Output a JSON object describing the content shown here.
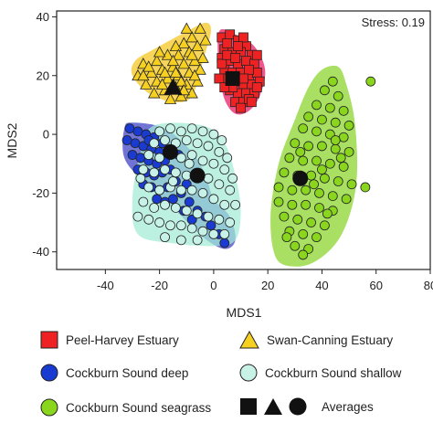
{
  "chart_data": {
    "type": "scatter",
    "xlabel": "MDS1",
    "ylabel": "MDS2",
    "xlim": [
      -58,
      80
    ],
    "ylim": [
      -46,
      42
    ],
    "xticks": [
      -40,
      -20,
      0,
      20,
      40,
      60,
      80
    ],
    "yticks": [
      -40,
      -20,
      0,
      20,
      40
    ],
    "xtick_labels": [
      "-40",
      "-20",
      "0",
      "20",
      "40",
      "60",
      "80"
    ],
    "ytick_labels": [
      "-40",
      "-20",
      "0",
      "20",
      "40"
    ],
    "grid": false,
    "annotation": "Stress: 0.19",
    "series": [
      {
        "name": "Peel-Harvey Estuary",
        "marker": "square",
        "color": "#ee2222",
        "hull_color": "#e8155f",
        "average": [
          7,
          19
        ],
        "hull": [
          [
            2,
            35
          ],
          [
            8,
            34
          ],
          [
            15,
            30
          ],
          [
            19,
            22
          ],
          [
            17,
            13
          ],
          [
            13,
            8
          ],
          [
            8,
            7
          ],
          [
            4,
            12
          ],
          [
            2,
            22
          ]
        ],
        "points": [
          [
            3,
            33
          ],
          [
            6,
            34
          ],
          [
            9,
            32
          ],
          [
            12,
            30
          ],
          [
            4,
            29
          ],
          [
            7,
            28
          ],
          [
            10,
            28
          ],
          [
            14,
            27
          ],
          [
            3,
            26
          ],
          [
            6,
            25
          ],
          [
            9,
            24
          ],
          [
            12,
            25
          ],
          [
            15,
            24
          ],
          [
            4,
            22
          ],
          [
            7,
            21
          ],
          [
            10,
            21
          ],
          [
            13,
            20
          ],
          [
            16,
            21
          ],
          [
            5,
            19
          ],
          [
            8,
            18
          ],
          [
            11,
            17
          ],
          [
            14,
            17
          ],
          [
            17,
            18
          ],
          [
            6,
            15
          ],
          [
            9,
            14
          ],
          [
            12,
            14
          ],
          [
            15,
            14
          ],
          [
            8,
            11
          ],
          [
            11,
            11
          ],
          [
            10,
            9
          ],
          [
            13,
            12
          ],
          [
            3,
            24
          ],
          [
            5,
            31
          ],
          [
            11,
            33
          ],
          [
            16,
            27
          ],
          [
            2,
            19
          ],
          [
            7,
            16
          ],
          [
            13,
            22
          ],
          [
            9,
            30
          ],
          [
            5,
            27
          ],
          [
            16,
            16
          ],
          [
            11,
            19
          ],
          [
            8,
            26
          ],
          [
            14,
            11
          ],
          [
            4,
            16
          ]
        ]
      },
      {
        "name": "Swan-Canning Estuary",
        "marker": "triangle",
        "color": "#f5d020",
        "hull_color": "#f2c51a",
        "average": [
          -15,
          16
        ],
        "hull": [
          [
            -3,
            38
          ],
          [
            -1,
            35
          ],
          [
            -4,
            25
          ],
          [
            -8,
            13
          ],
          [
            -15,
            11
          ],
          [
            -24,
            14
          ],
          [
            -30,
            20
          ],
          [
            -29,
            25
          ],
          [
            -22,
            29
          ],
          [
            -10,
            35
          ]
        ],
        "points": [
          [
            -5,
            36
          ],
          [
            -8,
            33
          ],
          [
            -11,
            31
          ],
          [
            -14,
            30
          ],
          [
            -6,
            30
          ],
          [
            -9,
            28
          ],
          [
            -13,
            27
          ],
          [
            -17,
            27
          ],
          [
            -21,
            25
          ],
          [
            -26,
            24
          ],
          [
            -4,
            26
          ],
          [
            -7,
            25
          ],
          [
            -11,
            24
          ],
          [
            -15,
            23
          ],
          [
            -19,
            22
          ],
          [
            -23,
            21
          ],
          [
            -28,
            20
          ],
          [
            -5,
            22
          ],
          [
            -9,
            21
          ],
          [
            -13,
            20
          ],
          [
            -17,
            19
          ],
          [
            -21,
            18
          ],
          [
            -25,
            17
          ],
          [
            -6,
            18
          ],
          [
            -10,
            17
          ],
          [
            -14,
            16
          ],
          [
            -18,
            15
          ],
          [
            -22,
            14
          ],
          [
            -8,
            14
          ],
          [
            -12,
            13
          ],
          [
            -16,
            12
          ],
          [
            -3,
            32
          ],
          [
            -10,
            36
          ],
          [
            -20,
            28
          ],
          [
            -24,
            23
          ],
          [
            -7,
            20
          ],
          [
            -15,
            25
          ],
          [
            -12,
            18
          ],
          [
            -19,
            17
          ],
          [
            -26,
            20
          ],
          [
            -8,
            27
          ],
          [
            -14,
            21
          ],
          [
            -11,
            15
          ],
          [
            -18,
            21
          ]
        ]
      },
      {
        "name": "Cockburn Sound deep",
        "marker": "circle",
        "color": "#1a3bd1",
        "hull_color": "#3a3fc4",
        "average": [
          -16,
          -6
        ],
        "hull": [
          [
            -33,
            2
          ],
          [
            -30,
            4
          ],
          [
            -18,
            2
          ],
          [
            -8,
            -6
          ],
          [
            -3,
            -14
          ],
          [
            0,
            -22
          ],
          [
            6,
            -28
          ],
          [
            8,
            -36
          ],
          [
            4,
            -39
          ],
          [
            -4,
            -35
          ],
          [
            -14,
            -26
          ],
          [
            -26,
            -16
          ],
          [
            -33,
            -8
          ]
        ],
        "points": [
          [
            -31,
            2
          ],
          [
            -28,
            1
          ],
          [
            -25,
            0
          ],
          [
            -22,
            -1
          ],
          [
            -29,
            -3
          ],
          [
            -26,
            -4
          ],
          [
            -23,
            -5
          ],
          [
            -20,
            -6
          ],
          [
            -30,
            -7
          ],
          [
            -27,
            -8
          ],
          [
            -24,
            -9
          ],
          [
            -21,
            -10
          ],
          [
            -18,
            -9
          ],
          [
            -28,
            -12
          ],
          [
            -25,
            -13
          ],
          [
            -22,
            -14
          ],
          [
            -19,
            -13
          ],
          [
            -16,
            -12
          ],
          [
            -26,
            -17
          ],
          [
            -23,
            -18
          ],
          [
            -20,
            -19
          ],
          [
            -17,
            -18
          ],
          [
            -14,
            -16
          ],
          [
            -21,
            -22
          ],
          [
            -18,
            -23
          ],
          [
            -15,
            -22
          ],
          [
            -12,
            -20
          ],
          [
            -9,
            -23
          ],
          [
            -6,
            -26
          ],
          [
            -3,
            -28
          ],
          [
            -1,
            -31
          ],
          [
            2,
            -34
          ],
          [
            4,
            -37
          ],
          [
            -8,
            -29
          ],
          [
            -11,
            -26
          ],
          [
            -32,
            -2
          ],
          [
            -19,
            -3
          ],
          [
            -13,
            -7
          ],
          [
            -24,
            -2
          ],
          [
            -10,
            -17
          ]
        ]
      },
      {
        "name": "Cockburn Sound shallow",
        "marker": "circle",
        "color": "#c8f2e8",
        "hull_color": "#a2ecd6",
        "average": [
          -6,
          -14
        ],
        "hull": [
          [
            -22,
            3
          ],
          [
            -4,
            3
          ],
          [
            4,
            -3
          ],
          [
            8,
            -14
          ],
          [
            10,
            -26
          ],
          [
            8,
            -36
          ],
          [
            0,
            -38
          ],
          [
            -16,
            -37
          ],
          [
            -28,
            -34
          ],
          [
            -30,
            -22
          ],
          [
            -27,
            -6
          ]
        ],
        "points": [
          [
            -20,
            1
          ],
          [
            -16,
            2
          ],
          [
            -12,
            1
          ],
          [
            -8,
            2
          ],
          [
            -4,
            1
          ],
          [
            0,
            0
          ],
          [
            3,
            -2
          ],
          [
            -22,
            -3
          ],
          [
            -18,
            -2
          ],
          [
            -14,
            -3
          ],
          [
            -10,
            -2
          ],
          [
            -6,
            -3
          ],
          [
            -2,
            -4
          ],
          [
            2,
            -6
          ],
          [
            5,
            -8
          ],
          [
            -24,
            -7
          ],
          [
            -20,
            -8
          ],
          [
            -16,
            -7
          ],
          [
            -12,
            -8
          ],
          [
            -8,
            -7
          ],
          [
            -4,
            -9
          ],
          [
            0,
            -10
          ],
          [
            4,
            -12
          ],
          [
            7,
            -15
          ],
          [
            -26,
            -12
          ],
          [
            -22,
            -13
          ],
          [
            -18,
            -12
          ],
          [
            -14,
            -13
          ],
          [
            -10,
            -14
          ],
          [
            -2,
            -15
          ],
          [
            2,
            -17
          ],
          [
            6,
            -19
          ],
          [
            -24,
            -18
          ],
          [
            -20,
            -19
          ],
          [
            -16,
            -18
          ],
          [
            -12,
            -19
          ],
          [
            -8,
            -19
          ],
          [
            -4,
            -20
          ],
          [
            0,
            -22
          ],
          [
            4,
            -24
          ],
          [
            8,
            -24
          ],
          [
            -26,
            -23
          ],
          [
            -22,
            -25
          ],
          [
            -18,
            -24
          ],
          [
            -14,
            -25
          ],
          [
            -10,
            -26
          ],
          [
            -6,
            -27
          ],
          [
            -2,
            -28
          ],
          [
            2,
            -29
          ],
          [
            6,
            -30
          ],
          [
            -24,
            -29
          ],
          [
            -20,
            -30
          ],
          [
            -16,
            -31
          ],
          [
            -12,
            -31
          ],
          [
            -8,
            -32
          ],
          [
            -4,
            -33
          ],
          [
            0,
            -34
          ],
          [
            4,
            -34
          ],
          [
            -18,
            -35
          ],
          [
            -12,
            -36
          ],
          [
            -6,
            -36
          ],
          [
            -28,
            -28
          ],
          [
            -27,
            -15
          ],
          [
            -9,
            -10
          ],
          [
            -15,
            -16
          ]
        ]
      },
      {
        "name": "Cockburn Sound seagrass",
        "marker": "circle",
        "color": "#8ad61e",
        "hull_color": "#88d327",
        "average": [
          32,
          -15
        ],
        "hull": [
          [
            40,
            22
          ],
          [
            46,
            23
          ],
          [
            49,
            17
          ],
          [
            52,
            5
          ],
          [
            53,
            -12
          ],
          [
            51,
            -25
          ],
          [
            46,
            -36
          ],
          [
            38,
            -43
          ],
          [
            30,
            -45
          ],
          [
            23,
            -42
          ],
          [
            21,
            -28
          ],
          [
            24,
            -10
          ],
          [
            30,
            5
          ],
          [
            35,
            16
          ]
        ],
        "points": [
          [
            44,
            18
          ],
          [
            41,
            15
          ],
          [
            46,
            13
          ],
          [
            38,
            10
          ],
          [
            43,
            9
          ],
          [
            48,
            8
          ],
          [
            35,
            6
          ],
          [
            40,
            5
          ],
          [
            45,
            4
          ],
          [
            50,
            3
          ],
          [
            33,
            2
          ],
          [
            38,
            1
          ],
          [
            43,
            0
          ],
          [
            48,
            -1
          ],
          [
            30,
            -3
          ],
          [
            35,
            -4
          ],
          [
            40,
            -4
          ],
          [
            45,
            -5
          ],
          [
            50,
            -6
          ],
          [
            28,
            -8
          ],
          [
            33,
            -9
          ],
          [
            38,
            -9
          ],
          [
            43,
            -10
          ],
          [
            48,
            -11
          ],
          [
            26,
            -13
          ],
          [
            31,
            -14
          ],
          [
            36,
            -14
          ],
          [
            41,
            -15
          ],
          [
            46,
            -16
          ],
          [
            51,
            -17
          ],
          [
            24,
            -18
          ],
          [
            29,
            -19
          ],
          [
            34,
            -19
          ],
          [
            39,
            -20
          ],
          [
            44,
            -21
          ],
          [
            49,
            -22
          ],
          [
            24,
            -23
          ],
          [
            29,
            -24
          ],
          [
            34,
            -24
          ],
          [
            39,
            -25
          ],
          [
            44,
            -26
          ],
          [
            26,
            -28
          ],
          [
            31,
            -29
          ],
          [
            36,
            -30
          ],
          [
            41,
            -31
          ],
          [
            28,
            -33
          ],
          [
            33,
            -34
          ],
          [
            38,
            -35
          ],
          [
            30,
            -38
          ],
          [
            35,
            -39
          ],
          [
            33,
            -41
          ],
          [
            45,
            -2
          ],
          [
            37,
            -17
          ],
          [
            42,
            -27
          ],
          [
            27,
            -35
          ],
          [
            47,
            -8
          ],
          [
            58,
            18
          ],
          [
            56,
            -18
          ],
          [
            32,
            -6
          ],
          [
            40,
            -12
          ]
        ]
      }
    ]
  },
  "legend": {
    "items": [
      {
        "label": "Peel-Harvey Estuary"
      },
      {
        "label": "Swan-Canning Estuary"
      },
      {
        "label": "Cockburn Sound deep"
      },
      {
        "label": "Cockburn Sound shallow"
      },
      {
        "label": "Cockburn Sound seagrass"
      }
    ],
    "averages_label": "Averages"
  }
}
